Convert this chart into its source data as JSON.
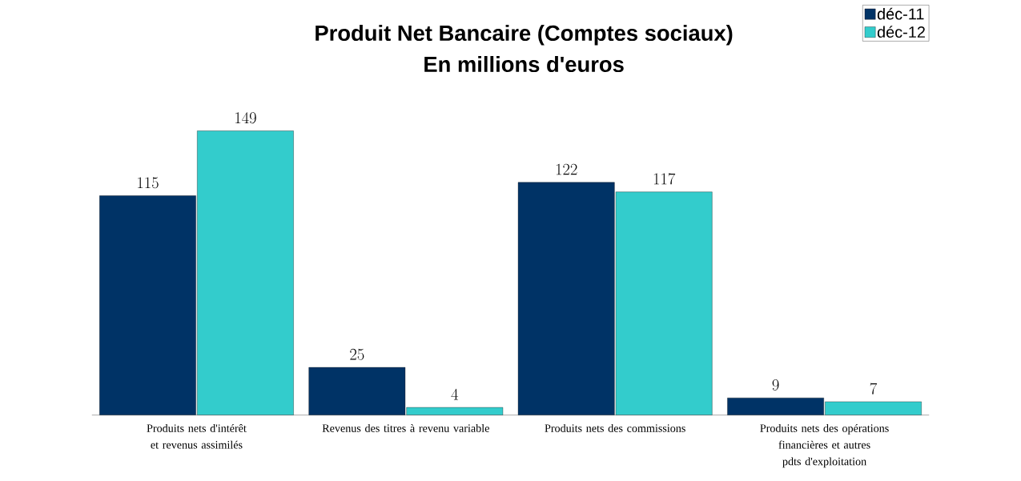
{
  "chart_data": {
    "type": "bar",
    "title": "Produit Net Bancaire (Comptes sociaux)",
    "subtitle": "En millions d'euros",
    "categories": [
      "Produits nets d'intérêt et revenus assimilés",
      "Revenus des titres à revenu variable",
      "Produits nets des commissions",
      "Produits nets des opérations financières et autres pdts d'exploitation"
    ],
    "series": [
      {
        "name": "déc-11",
        "color": "#003366",
        "values": [
          115,
          25,
          122,
          9
        ]
      },
      {
        "name": "déc-12",
        "color": "#33cccc",
        "values": [
          149,
          4,
          117,
          7
        ]
      }
    ],
    "data_labels": true,
    "legend": "top right"
  }
}
